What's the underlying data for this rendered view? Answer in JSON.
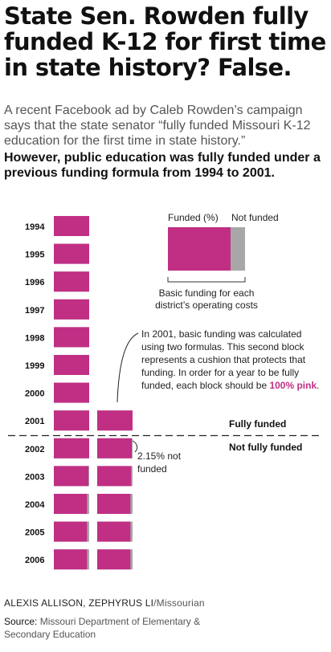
{
  "headline": "State Sen. Rowden fully funded K-12 for first time in state history? False.",
  "dek": "A recent Facebook ad by Caleb Rowden’s campaign says that the state senator “fully funded Missouri K-12 education for the first time in state history.”",
  "dek_bold": "However, public education was fully funded under a previous funding formula from 1994 to 2001.",
  "colors": {
    "funded": "#c02f84",
    "not_funded": "#a7a7a8"
  },
  "chart_data": {
    "type": "bar",
    "orientation": "horizontal",
    "unit": "Funded (%)",
    "categories": [
      "1994",
      "1995",
      "1996",
      "1997",
      "1998",
      "1999",
      "2000",
      "2001",
      "2002",
      "2003",
      "2004",
      "2005",
      "2006"
    ],
    "series": [
      {
        "name": "Basic funding for each district’s operating costs",
        "values": [
          100,
          100,
          100,
          100,
          100,
          100,
          100,
          100,
          100,
          98,
          94,
          94,
          94
        ]
      },
      {
        "name": "",
        "values": [
          null,
          null,
          null,
          null,
          null,
          null,
          null,
          100,
          97.85,
          96,
          94,
          94,
          94
        ]
      }
    ],
    "legend": {
      "funded_label": "Funded (%)",
      "not_funded_label": "Not funded",
      "caption_line1": "Basic funding for each",
      "caption_line2": "district’s operating costs"
    },
    "annotation": {
      "lines": [
        "In 2001, basic funding was calculated",
        "using two formulas. This second block",
        "represents a cushion that protects that",
        "funding. In order for a year to be fully"
      ],
      "last_line_prefix": "funded, each block should be ",
      "last_line_highlight": "100% pink",
      "last_line_suffix": "."
    },
    "note_2002_line1": "2.15% not",
    "note_2002_line2": "funded",
    "status_fully": "Fully funded",
    "status_not_fully": "Not fully funded"
  },
  "credit": {
    "authors": "ALEXIS ALLISON, ZEPHYRUS LI",
    "org": "/Missourian"
  },
  "source": {
    "label": "Source:",
    "text": "Missouri Department of Elementary & Secondary Education"
  }
}
